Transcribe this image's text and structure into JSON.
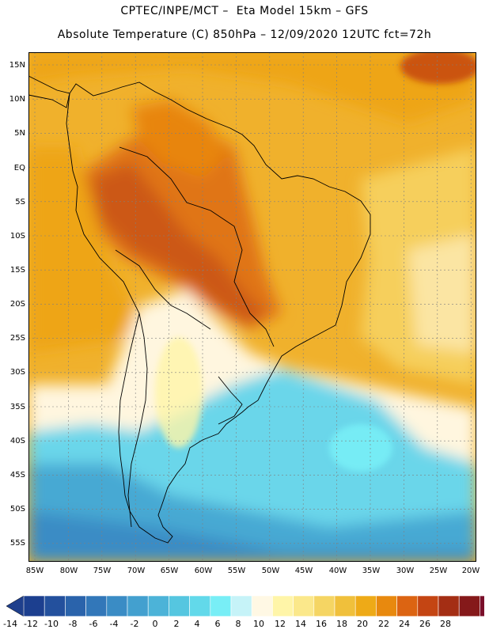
{
  "header": {
    "title_line1": "CPTEC/INPE/MCT –  Eta Model 15km – GFS",
    "title_line2": "Absolute Temperature (C) 850hPa – 12/09/2020 12UTC fct=72h"
  },
  "map": {
    "lat_labels": [
      "15N",
      "10N",
      "5N",
      "EQ",
      "5S",
      "10S",
      "15S",
      "20S",
      "25S",
      "30S",
      "35S",
      "40S",
      "45S",
      "50S",
      "55S"
    ],
    "lon_labels": [
      "85W",
      "80W",
      "75W",
      "70W",
      "65W",
      "60W",
      "55W",
      "50W",
      "45W",
      "40W",
      "35W",
      "30W",
      "25W",
      "20W"
    ],
    "gridline_color": "#7f7f7f"
  },
  "colorbar": {
    "labels": [
      "-14",
      "-12",
      "-10",
      "-8",
      "-6",
      "-4",
      "-2",
      "0",
      "2",
      "4",
      "6",
      "8",
      "10",
      "12",
      "14",
      "16",
      "18",
      "20",
      "22",
      "24",
      "26",
      "28"
    ],
    "colors": [
      "#1c3f8f",
      "#23509d",
      "#2a63ab",
      "#3277b9",
      "#3a8cc5",
      "#43a0cf",
      "#4cb3d8",
      "#55c6e0",
      "#62d9ea",
      "#78eef6",
      "#c6f3f8",
      "#fff8e4",
      "#fff5a8",
      "#fbe88b",
      "#f5d563",
      "#f0c03b",
      "#eeaa17",
      "#e8890e",
      "#dc6412",
      "#c44513",
      "#a42e14",
      "#85191a",
      "#7a0f2a"
    ],
    "under_color": "#1f3f8c",
    "over_color": "#7d0a2a"
  }
}
